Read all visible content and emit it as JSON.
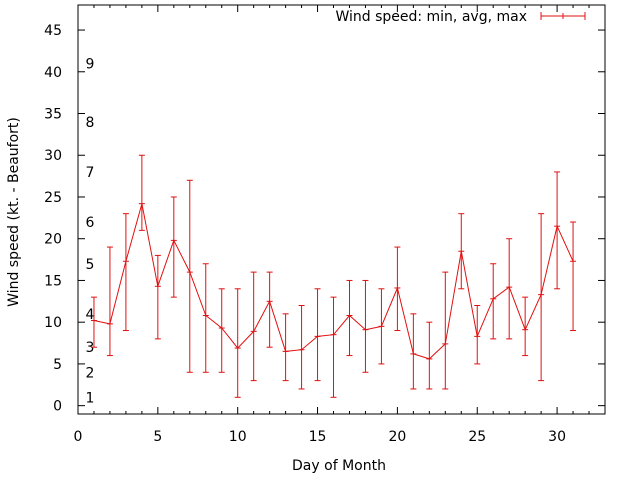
{
  "chart_data": {
    "type": "line",
    "title": "",
    "xlabel": "Day of Month",
    "ylabel": "Wind speed (kt. - Beaufort)",
    "xlim": [
      0,
      33
    ],
    "ylim": [
      -1,
      48
    ],
    "x_ticks": [
      0,
      5,
      10,
      15,
      20,
      25,
      30
    ],
    "y_ticks": [
      0,
      5,
      10,
      15,
      20,
      25,
      30,
      35,
      40,
      45
    ],
    "legend": {
      "label": "Wind speed: min, avg, max",
      "position": "top-right"
    },
    "series_color": "#e01010",
    "beaufort_labels": [
      {
        "label": "1",
        "value": 1
      },
      {
        "label": "2",
        "value": 4
      },
      {
        "label": "3",
        "value": 7
      },
      {
        "label": "4",
        "value": 11
      },
      {
        "label": "5",
        "value": 17
      },
      {
        "label": "6",
        "value": 22
      },
      {
        "label": "7",
        "value": 28
      },
      {
        "label": "8",
        "value": 34
      },
      {
        "label": "9",
        "value": 41
      }
    ],
    "series": [
      {
        "name": "Wind speed: min, avg, max",
        "points": [
          {
            "x": 1,
            "min": 7,
            "avg": 10.2,
            "max": 13
          },
          {
            "x": 2,
            "min": 6,
            "avg": 9.8,
            "max": 19
          },
          {
            "x": 3,
            "min": 9,
            "avg": 17.3,
            "max": 23
          },
          {
            "x": 4,
            "min": 21,
            "avg": 24.2,
            "max": 30
          },
          {
            "x": 5,
            "min": 8,
            "avg": 14.3,
            "max": 18
          },
          {
            "x": 6,
            "min": 13,
            "avg": 19.8,
            "max": 25
          },
          {
            "x": 7,
            "min": 4,
            "avg": 16,
            "max": 27
          },
          {
            "x": 8,
            "min": 4,
            "avg": 10.8,
            "max": 17
          },
          {
            "x": 9,
            "min": 4,
            "avg": 9.3,
            "max": 14
          },
          {
            "x": 10,
            "min": 1,
            "avg": 6.9,
            "max": 14
          },
          {
            "x": 11,
            "min": 3,
            "avg": 8.9,
            "max": 16
          },
          {
            "x": 12,
            "min": 7,
            "avg": 12.5,
            "max": 16
          },
          {
            "x": 13,
            "min": 3,
            "avg": 6.5,
            "max": 11
          },
          {
            "x": 14,
            "min": 2,
            "avg": 6.7,
            "max": 12
          },
          {
            "x": 15,
            "min": 3,
            "avg": 8.3,
            "max": 14
          },
          {
            "x": 16,
            "min": 1,
            "avg": 8.5,
            "max": 13
          },
          {
            "x": 17,
            "min": 6,
            "avg": 10.8,
            "max": 15
          },
          {
            "x": 18,
            "min": 4,
            "avg": 9.1,
            "max": 15
          },
          {
            "x": 19,
            "min": 5,
            "avg": 9.5,
            "max": 14
          },
          {
            "x": 20,
            "min": 9,
            "avg": 14.1,
            "max": 19
          },
          {
            "x": 21,
            "min": 2,
            "avg": 6.2,
            "max": 11
          },
          {
            "x": 22,
            "min": 2,
            "avg": 5.6,
            "max": 10
          },
          {
            "x": 23,
            "min": 2,
            "avg": 7.4,
            "max": 16
          },
          {
            "x": 24,
            "min": 14,
            "avg": 18.5,
            "max": 23
          },
          {
            "x": 25,
            "min": 5,
            "avg": 8.3,
            "max": 12
          },
          {
            "x": 26,
            "min": 8,
            "avg": 12.8,
            "max": 17
          },
          {
            "x": 27,
            "min": 8,
            "avg": 14.2,
            "max": 20
          },
          {
            "x": 28,
            "min": 6,
            "avg": 9.1,
            "max": 13
          },
          {
            "x": 29,
            "min": 3,
            "avg": 13.3,
            "max": 23
          },
          {
            "x": 30,
            "min": 14,
            "avg": 21.5,
            "max": 28
          },
          {
            "x": 31,
            "min": 9,
            "avg": 17.3,
            "max": 22
          }
        ]
      }
    ]
  }
}
